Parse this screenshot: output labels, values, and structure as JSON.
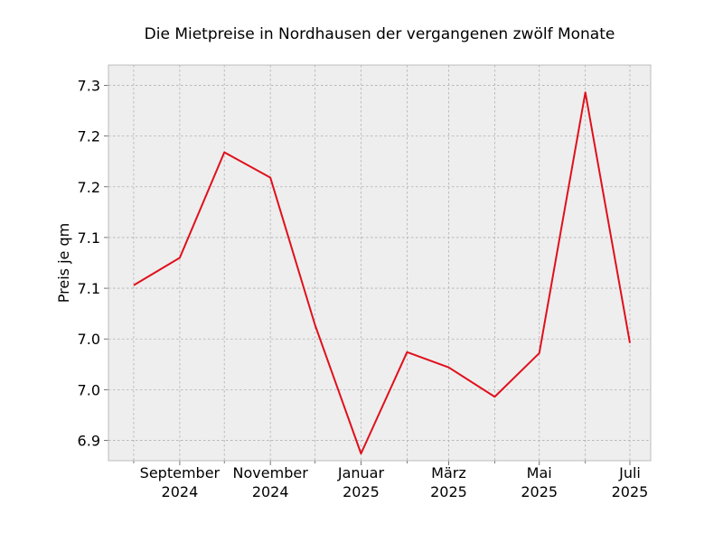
{
  "chart_data": {
    "type": "line",
    "title": "Die Mietpreise in Nordhausen der vergangenen zwölf Monate",
    "xlabel": "",
    "ylabel": "Preis je qm",
    "x": [
      "2024-08",
      "2024-09",
      "2024-10",
      "2024-11",
      "2024-12",
      "2025-01",
      "2025-02",
      "2025-03",
      "2025-04",
      "2025-05",
      "2025-06",
      "2025-07"
    ],
    "xlim": [
      "2024-07-15",
      "2025-07-15"
    ],
    "x_ticks": [
      {
        "x": "2024-09",
        "label": [
          "September",
          "2024"
        ]
      },
      {
        "x": "2024-11",
        "label": [
          "November",
          "2024"
        ]
      },
      {
        "x": "2025-01",
        "label": [
          "Januar",
          "2025"
        ]
      },
      {
        "x": "2025-03",
        "label": [
          "März",
          "2025"
        ]
      },
      {
        "x": "2025-05",
        "label": [
          "Mai",
          "2025"
        ]
      },
      {
        "x": "2025-07",
        "label": [
          "Juli",
          "2025"
        ]
      }
    ],
    "x_minor_ticks": [
      "2024-08",
      "2024-10",
      "2024-12",
      "2025-02",
      "2025-04",
      "2025-06"
    ],
    "series": [
      {
        "color": "#e0101c",
        "values": [
          7.053,
          7.08,
          7.184,
          7.159,
          7.014,
          6.887,
          6.987,
          6.972,
          6.943,
          6.986,
          7.243,
          6.996
        ]
      }
    ],
    "ylim": [
      6.88,
      7.27
    ],
    "y_ticks": [
      {
        "value": 6.9,
        "label": "6.9"
      },
      {
        "value": 6.95,
        "label": "7.0"
      },
      {
        "value": 7.0,
        "label": "7.0"
      },
      {
        "value": 7.05,
        "label": "7.1"
      },
      {
        "value": 7.1,
        "label": "7.1"
      },
      {
        "value": 7.15,
        "label": "7.2"
      },
      {
        "value": 7.2,
        "label": "7.2"
      },
      {
        "value": 7.25,
        "label": "7.3"
      }
    ],
    "grid": true,
    "colors": {
      "plot_background": "#eeeeee",
      "grid": "#b0b0b0",
      "frame": "#bcbcbc"
    }
  }
}
